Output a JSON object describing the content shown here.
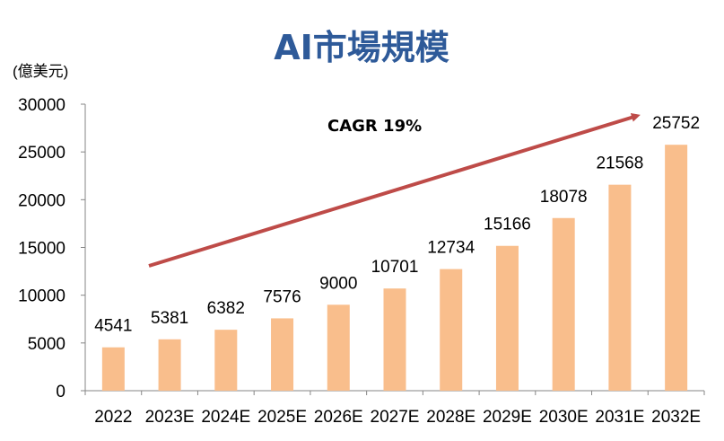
{
  "chart_data": {
    "type": "bar",
    "title": "AI市場規模",
    "ylabel": "(億美元)",
    "xlabel": "",
    "categories": [
      "2022",
      "2023E",
      "2024E",
      "2025E",
      "2026E",
      "2027E",
      "2028E",
      "2029E",
      "2030E",
      "2031E",
      "2032E"
    ],
    "values": [
      4541,
      5381,
      6382,
      7576,
      9000,
      10701,
      12734,
      15166,
      18078,
      21568,
      25752
    ],
    "data_labels": [
      "4541",
      "5381",
      "6382",
      "7576",
      "9000",
      "10701",
      "12734",
      "15166",
      "18078",
      "21568",
      "25752"
    ],
    "ylim": [
      0,
      30000
    ],
    "yticks": [
      "0",
      "5000",
      "10000",
      "15000",
      "20000",
      "25000",
      "30000"
    ],
    "grid": false,
    "annotation": "CAGR 19%",
    "colors": {
      "title": "#2E5A99",
      "bar": "#F9BE8C",
      "arrow": "#BE4B48",
      "axis": "#868686",
      "text": "#000000"
    }
  }
}
